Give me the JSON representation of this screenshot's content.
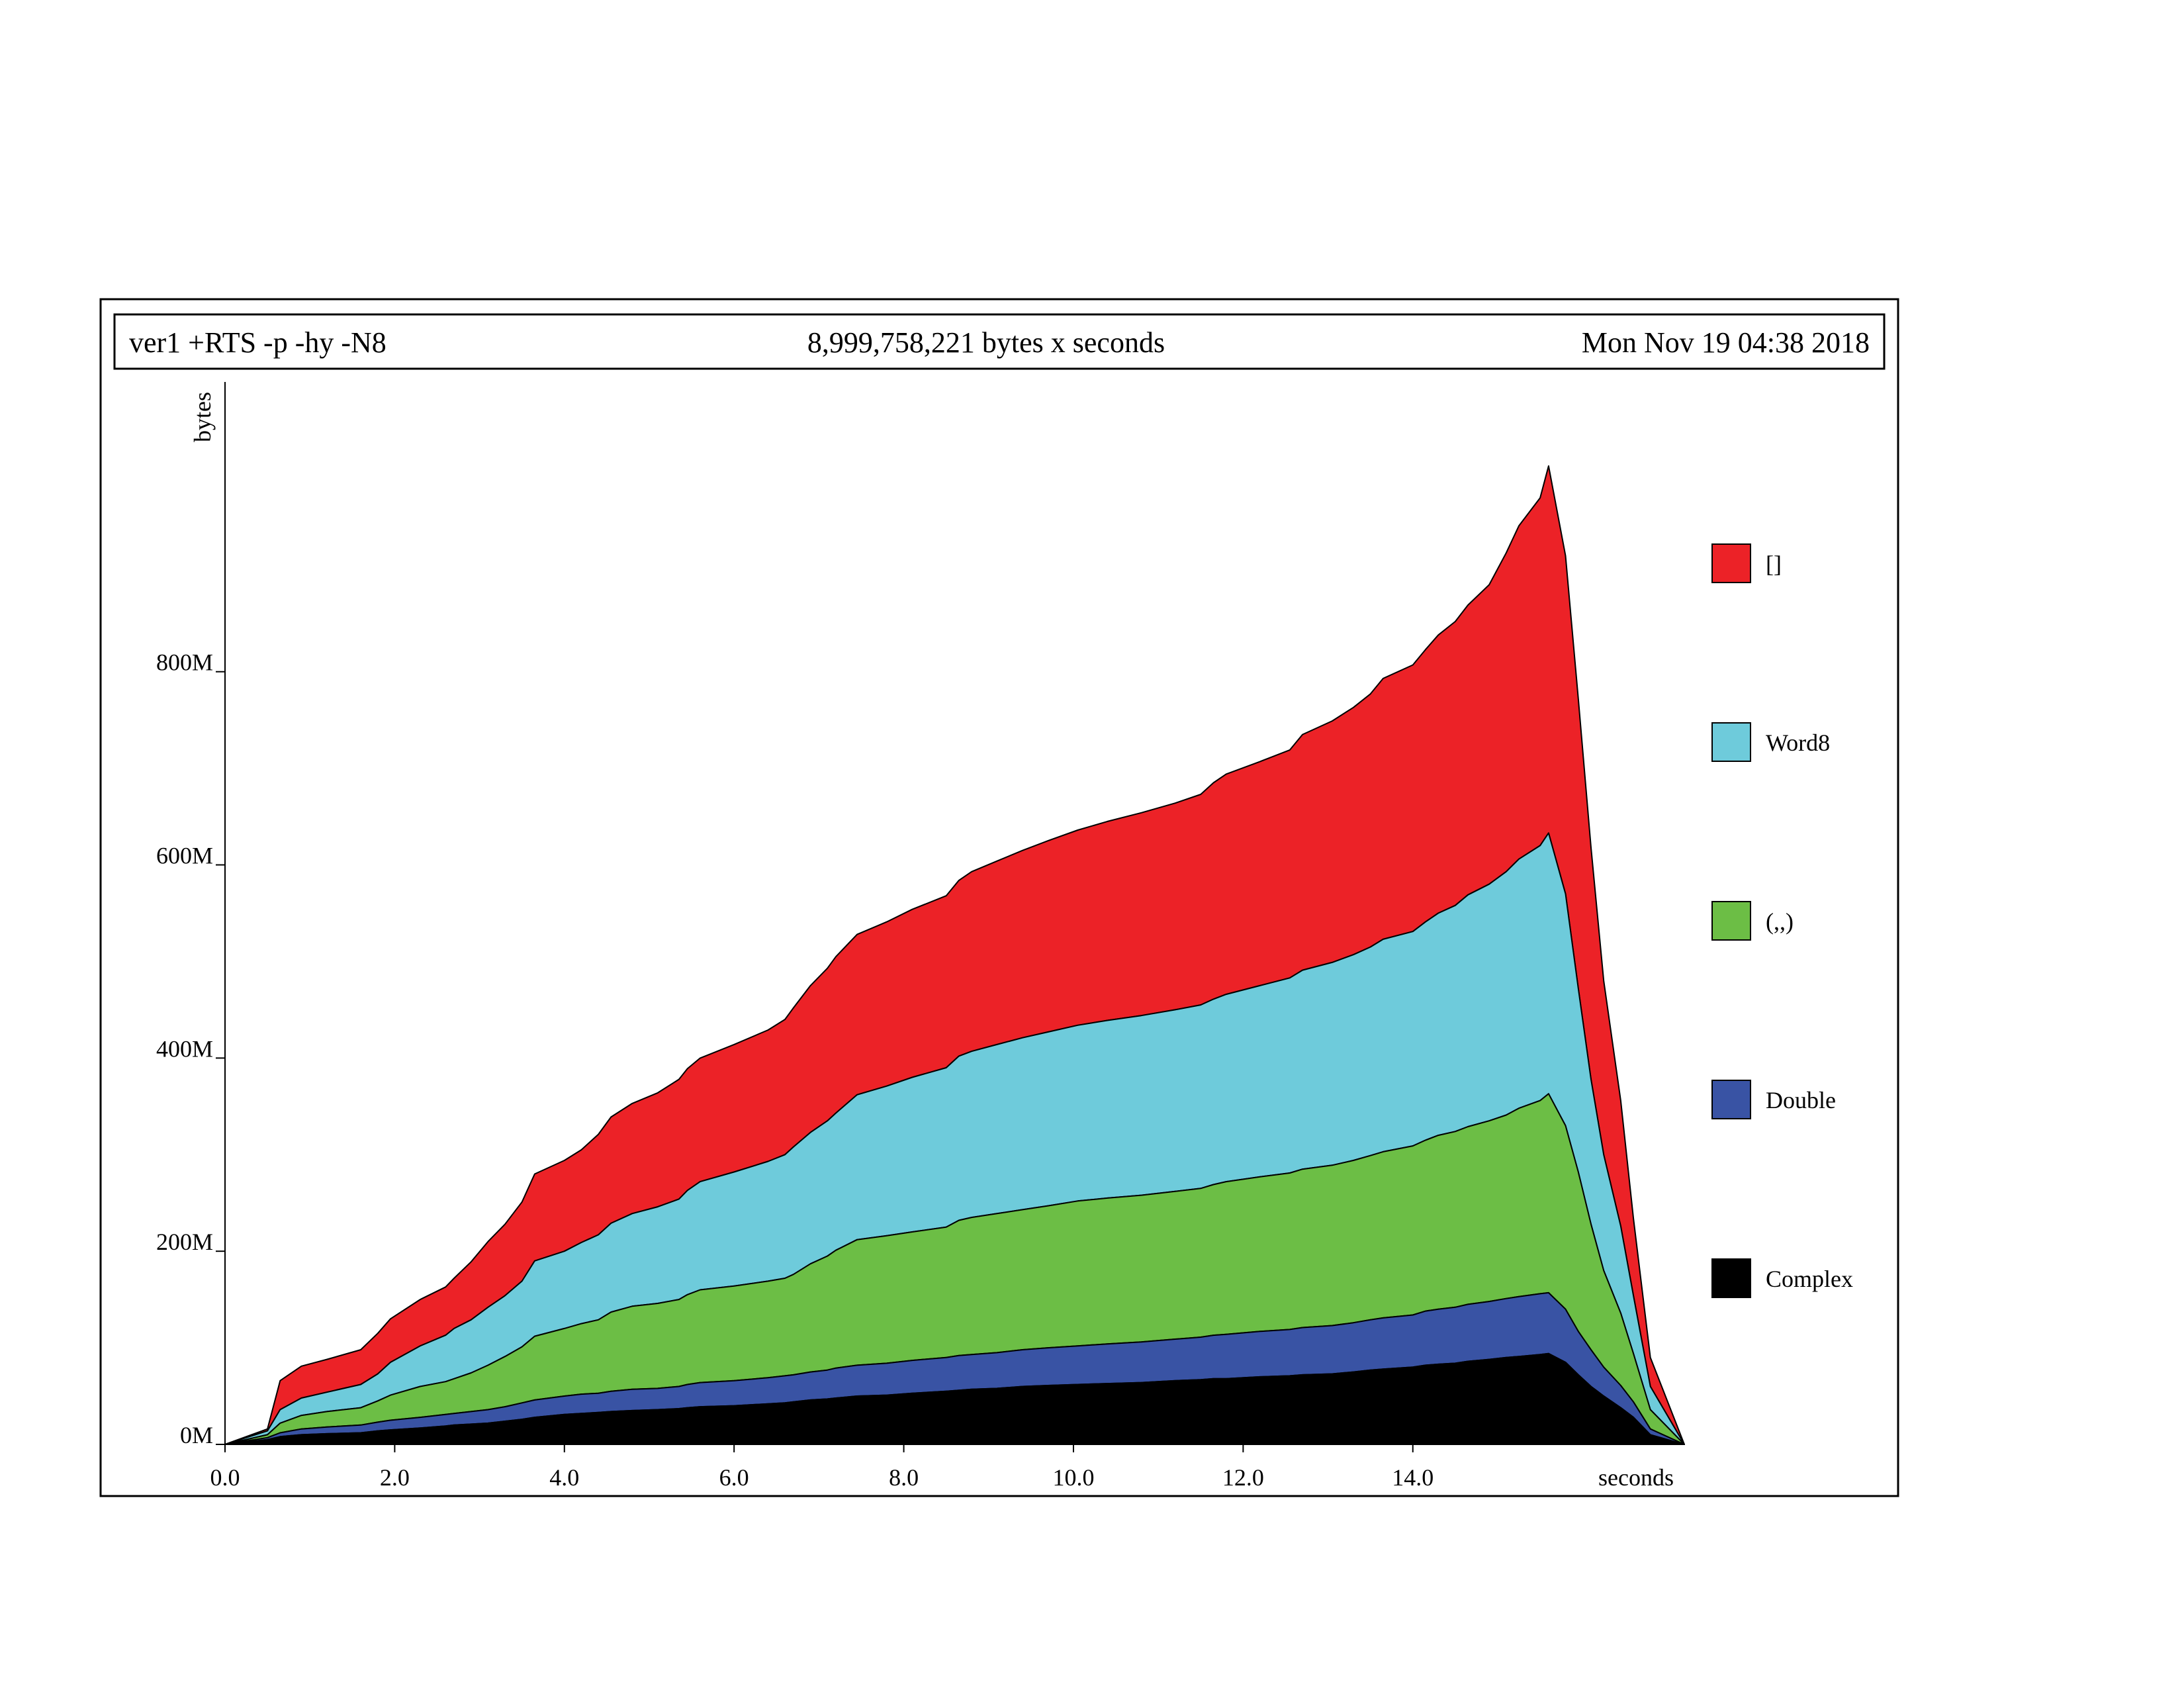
{
  "header": {
    "program": "ver1 +RTS -p -hy -N8",
    "total": "8,999,758,221 bytes x seconds",
    "date": "Mon Nov 19 04:38 2018"
  },
  "chart_data": {
    "type": "area",
    "stacked": true,
    "title": "",
    "xlabel": "seconds",
    "ylabel": "bytes",
    "xlim": [
      0,
      17.2
    ],
    "ylim": [
      0,
      1100
    ],
    "y_unit": "M",
    "grid": false,
    "legend_position": "right",
    "x_ticks": [
      {
        "value": 0,
        "label": "0.0"
      },
      {
        "value": 2,
        "label": "2.0"
      },
      {
        "value": 4,
        "label": "4.0"
      },
      {
        "value": 6,
        "label": "6.0"
      },
      {
        "value": 8,
        "label": "8.0"
      },
      {
        "value": 10,
        "label": "10.0"
      },
      {
        "value": 12,
        "label": "12.0"
      },
      {
        "value": 14,
        "label": "14.0"
      }
    ],
    "y_ticks": [
      {
        "value": 0,
        "label": "0M"
      },
      {
        "value": 200,
        "label": "200M"
      },
      {
        "value": 400,
        "label": "400M"
      },
      {
        "value": 600,
        "label": "600M"
      },
      {
        "value": 800,
        "label": "800M"
      }
    ],
    "x": [
      0,
      0.5,
      0.65,
      0.9,
      1.2,
      1.6,
      1.8,
      1.95,
      2.3,
      2.6,
      2.7,
      2.9,
      3.1,
      3.3,
      3.5,
      3.65,
      4.0,
      4.2,
      4.4,
      4.55,
      4.8,
      5.1,
      5.35,
      5.45,
      5.6,
      6.0,
      6.4,
      6.6,
      6.7,
      6.9,
      7.1,
      7.2,
      7.45,
      7.8,
      8.1,
      8.5,
      8.65,
      8.8,
      9.1,
      9.4,
      9.7,
      10.05,
      10.4,
      10.8,
      11.2,
      11.5,
      11.65,
      11.8,
      12.2,
      12.55,
      12.7,
      13.05,
      13.3,
      13.5,
      13.65,
      14.0,
      14.15,
      14.3,
      14.5,
      14.65,
      14.9,
      15.1,
      15.25,
      15.5,
      15.6,
      15.8,
      15.95,
      16.1,
      16.25,
      16.45,
      16.6,
      16.8,
      17.2
    ],
    "series": [
      {
        "name": "Complex",
        "color": "#000000",
        "values": [
          0,
          5,
          8,
          10,
          11,
          12,
          14,
          15,
          17,
          19,
          20,
          21,
          22,
          24,
          26,
          28,
          31,
          32,
          33,
          34,
          35,
          36,
          37,
          38,
          39,
          40,
          42,
          43,
          44,
          46,
          47,
          48,
          50,
          51,
          53,
          55,
          56,
          57,
          58,
          60,
          61,
          62,
          63,
          64,
          66,
          67,
          68,
          68,
          70,
          71,
          72,
          73,
          75,
          77,
          78,
          80,
          82,
          83,
          84,
          86,
          88,
          90,
          91,
          93,
          94,
          85,
          72,
          60,
          50,
          38,
          28,
          10,
          0
        ]
      },
      {
        "name": "Double",
        "color": "#3953a4",
        "values": [
          0,
          2,
          4,
          6,
          7,
          8,
          9,
          10,
          11,
          12,
          12,
          13,
          14,
          15,
          17,
          18,
          19,
          20,
          20,
          21,
          22,
          22,
          23,
          24,
          25,
          26,
          27,
          28,
          28,
          29,
          30,
          31,
          32,
          33,
          34,
          35,
          36,
          36,
          37,
          38,
          39,
          40,
          41,
          42,
          43,
          44,
          45,
          46,
          47,
          48,
          49,
          50,
          51,
          52,
          53,
          54,
          56,
          57,
          58,
          59,
          60,
          61,
          62,
          63,
          63,
          55,
          45,
          38,
          30,
          23,
          16,
          6,
          0
        ]
      },
      {
        "name": "(,,)",
        "color": "#6cbe45",
        "values": [
          0,
          3,
          10,
          14,
          16,
          18,
          22,
          26,
          32,
          34,
          36,
          40,
          46,
          52,
          58,
          66,
          70,
          73,
          76,
          82,
          86,
          88,
          90,
          93,
          96,
          98,
          100,
          101,
          104,
          112,
          118,
          122,
          130,
          132,
          133,
          135,
          140,
          142,
          144,
          145,
          147,
          150,
          151,
          152,
          153,
          154,
          156,
          158,
          160,
          162,
          164,
          166,
          168,
          170,
          172,
          175,
          177,
          180,
          182,
          184,
          187,
          190,
          195,
          200,
          206,
          190,
          165,
          130,
          100,
          75,
          50,
          20,
          0
        ]
      },
      {
        "name": "Word8",
        "color": "#6ecbdb",
        "values": [
          0,
          4,
          14,
          18,
          20,
          24,
          28,
          34,
          42,
          48,
          52,
          55,
          60,
          63,
          68,
          78,
          80,
          84,
          88,
          92,
          96,
          100,
          104,
          108,
          112,
          118,
          124,
          128,
          132,
          136,
          140,
          142,
          150,
          155,
          160,
          165,
          170,
          172,
          175,
          178,
          180,
          182,
          184,
          186,
          188,
          190,
          192,
          194,
          198,
          202,
          206,
          210,
          213,
          216,
          220,
          222,
          226,
          230,
          234,
          240,
          245,
          252,
          258,
          264,
          270,
          240,
          190,
          150,
          120,
          90,
          60,
          24,
          0
        ]
      },
      {
        "name": "[]",
        "color": "#ec2227",
        "values": [
          0,
          2,
          30,
          33,
          34,
          36,
          42,
          45,
          48,
          50,
          52,
          60,
          68,
          74,
          82,
          90,
          94,
          96,
          104,
          110,
          114,
          118,
          124,
          126,
          128,
          132,
          136,
          140,
          144,
          152,
          158,
          162,
          166,
          170,
          174,
          178,
          182,
          186,
          190,
          194,
          198,
          202,
          206,
          210,
          214,
          218,
          224,
          228,
          232,
          236,
          244,
          250,
          256,
          262,
          270,
          276,
          282,
          288,
          294,
          300,
          310,
          330,
          345,
          360,
          380,
          350,
          300,
          240,
          180,
          130,
          80,
          30,
          0
        ]
      }
    ]
  }
}
